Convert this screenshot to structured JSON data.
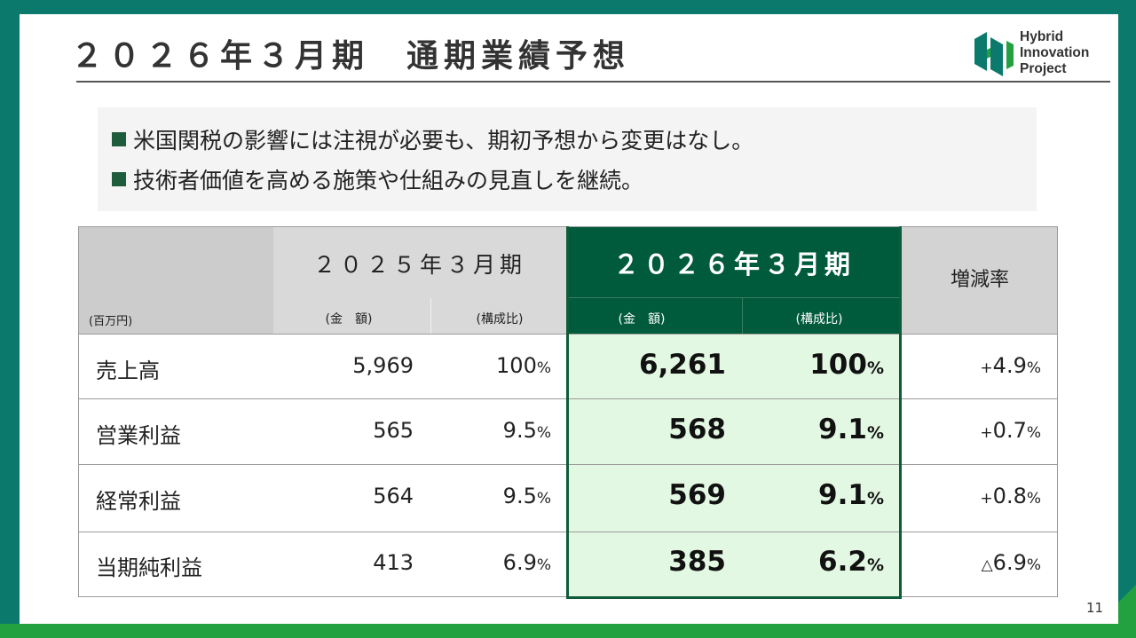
{
  "title": "２０２６年３月期　通期業績予想",
  "logo": {
    "line1": "Hybrid",
    "line2": "Innovation",
    "line3": "Project",
    "color": "#0b7a6c"
  },
  "bullets": [
    "米国関税の影響には注視が必要も、期初予想から変更はなし。",
    "技術者価値を高める施策や仕組みの見直しを継続。"
  ],
  "table": {
    "unit": "(百万円)",
    "period_2025": "２０２５年３月期",
    "period_2026": "２０２６年３月期",
    "rate_header": "増減率",
    "sub_amount": "(金　額)",
    "sub_ratio": "(構成比)",
    "rows": [
      {
        "label": "売上高",
        "v2025": "5,969",
        "r2025": "100",
        "v2026": "6,261",
        "r2026": "100",
        "rate": "4.9",
        "rate_sign": "+"
      },
      {
        "label": "営業利益",
        "v2025": "565",
        "r2025": "9.5",
        "v2026": "568",
        "r2026": "9.1",
        "rate": "0.7",
        "rate_sign": "+"
      },
      {
        "label": "経常利益",
        "v2025": "564",
        "r2025": "9.5",
        "v2026": "569",
        "r2026": "9.1",
        "rate": "0.8",
        "rate_sign": "+"
      },
      {
        "label": "当期純利益",
        "v2025": "413",
        "r2025": "6.9",
        "v2026": "385",
        "r2026": "6.2",
        "rate": "6.9",
        "rate_sign": "△"
      }
    ],
    "percent_sign": "%"
  },
  "page_number": "11",
  "colors": {
    "frame_top": "#0b7a6c",
    "frame_bottom": "#23a03f",
    "header_2026": "#005a3c",
    "highlight": "#e3f8e3"
  }
}
